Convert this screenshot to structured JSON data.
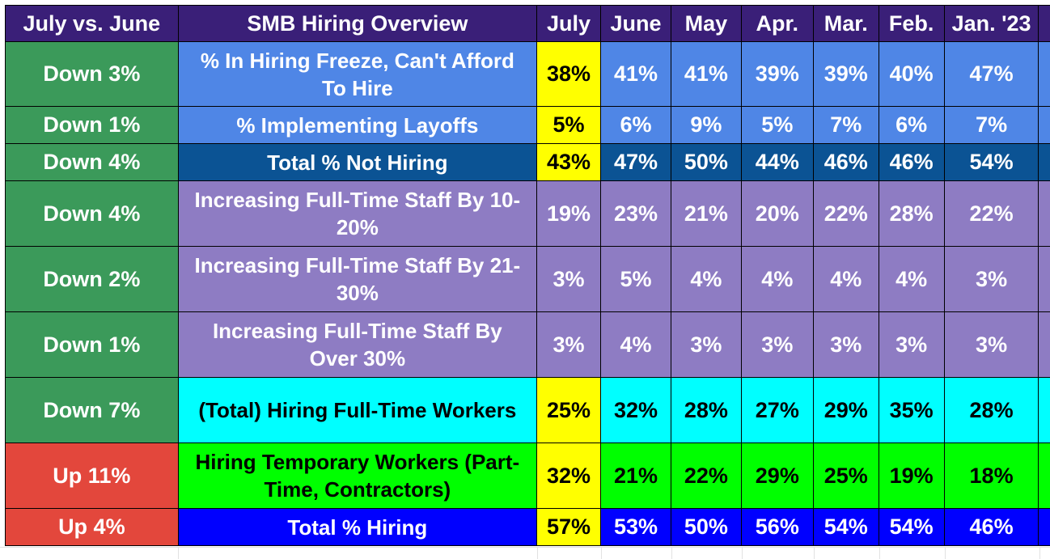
{
  "header": {
    "change_col": "July vs. June",
    "metric_col": "SMB Hiring Overview",
    "months": [
      "July",
      "June",
      "May",
      "Apr.",
      "Mar.",
      "Feb.",
      "Jan. '23"
    ]
  },
  "colors": {
    "header_bg": "#3a1f78",
    "header_text": "#ffffff",
    "down_change_bg": "#3b9a5a",
    "up_change_bg": "#e3473c",
    "july_highlight_bg": "#ffff00",
    "row_light_blue": "#4f86e6",
    "row_dark_blue": "#0b5394",
    "row_purple": "#8e7cc3",
    "row_cyan": "#00ffff",
    "row_green": "#00ff00",
    "row_blue": "#0000ff"
  },
  "rows": [
    {
      "change": "Down 3%",
      "change_dir": "down",
      "label": "% In Hiring Freeze, Can't Afford To Hire",
      "values": [
        "38%",
        "41%",
        "41%",
        "39%",
        "39%",
        "40%",
        "47%"
      ],
      "july_highlighted": true,
      "row_color": "#4f86e6",
      "text_color": "#ffffff"
    },
    {
      "change": "Down 1%",
      "change_dir": "down",
      "label": "% Implementing Layoffs",
      "values": [
        "5%",
        "6%",
        "9%",
        "5%",
        "7%",
        "6%",
        "7%"
      ],
      "july_highlighted": true,
      "row_color": "#4f86e6",
      "text_color": "#ffffff"
    },
    {
      "change": "Down 4%",
      "change_dir": "down",
      "label": "Total % Not Hiring",
      "values": [
        "43%",
        "47%",
        "50%",
        "44%",
        "46%",
        "46%",
        "54%"
      ],
      "july_highlighted": true,
      "row_color": "#0b5394",
      "text_color": "#ffffff"
    },
    {
      "change": "Down 4%",
      "change_dir": "down",
      "label": "Increasing  Full-Time Staff By 10-20%",
      "values": [
        "19%",
        "23%",
        "21%",
        "20%",
        "22%",
        "28%",
        "22%"
      ],
      "july_highlighted": false,
      "row_color": "#8e7cc3",
      "text_color": "#ffffff"
    },
    {
      "change": "Down 2%",
      "change_dir": "down",
      "label": "Increasing Full-Time Staff By 21-30%",
      "values": [
        "3%",
        "5%",
        "4%",
        "4%",
        "4%",
        "4%",
        "3%"
      ],
      "july_highlighted": false,
      "row_color": "#8e7cc3",
      "text_color": "#ffffff"
    },
    {
      "change": "Down 1%",
      "change_dir": "down",
      "label": "Increasing Full-Time Staff By Over 30%",
      "values": [
        "3%",
        "4%",
        "3%",
        "3%",
        "3%",
        "3%",
        "3%"
      ],
      "july_highlighted": false,
      "row_color": "#8e7cc3",
      "text_color": "#ffffff"
    },
    {
      "change": "Down 7%",
      "change_dir": "down",
      "label": "(Total) Hiring Full-Time Workers",
      "values": [
        "25%",
        "32%",
        "28%",
        "27%",
        "29%",
        "35%",
        "28%"
      ],
      "july_highlighted": true,
      "row_color": "#00ffff",
      "text_color": "#000000"
    },
    {
      "change": "Up 11%",
      "change_dir": "up",
      "label": "Hiring Temporary Workers (Part-Time, Contractors)",
      "values": [
        "32%",
        "21%",
        "22%",
        "29%",
        "25%",
        "19%",
        "18%"
      ],
      "july_highlighted": true,
      "row_color": "#00ff00",
      "text_color": "#000000"
    },
    {
      "change": "Up 4%",
      "change_dir": "up",
      "label": "Total % Hiring",
      "values": [
        "57%",
        "53%",
        "50%",
        "56%",
        "54%",
        "54%",
        "46%"
      ],
      "july_highlighted": true,
      "row_color": "#0000ff",
      "text_color": "#ffffff"
    }
  ]
}
